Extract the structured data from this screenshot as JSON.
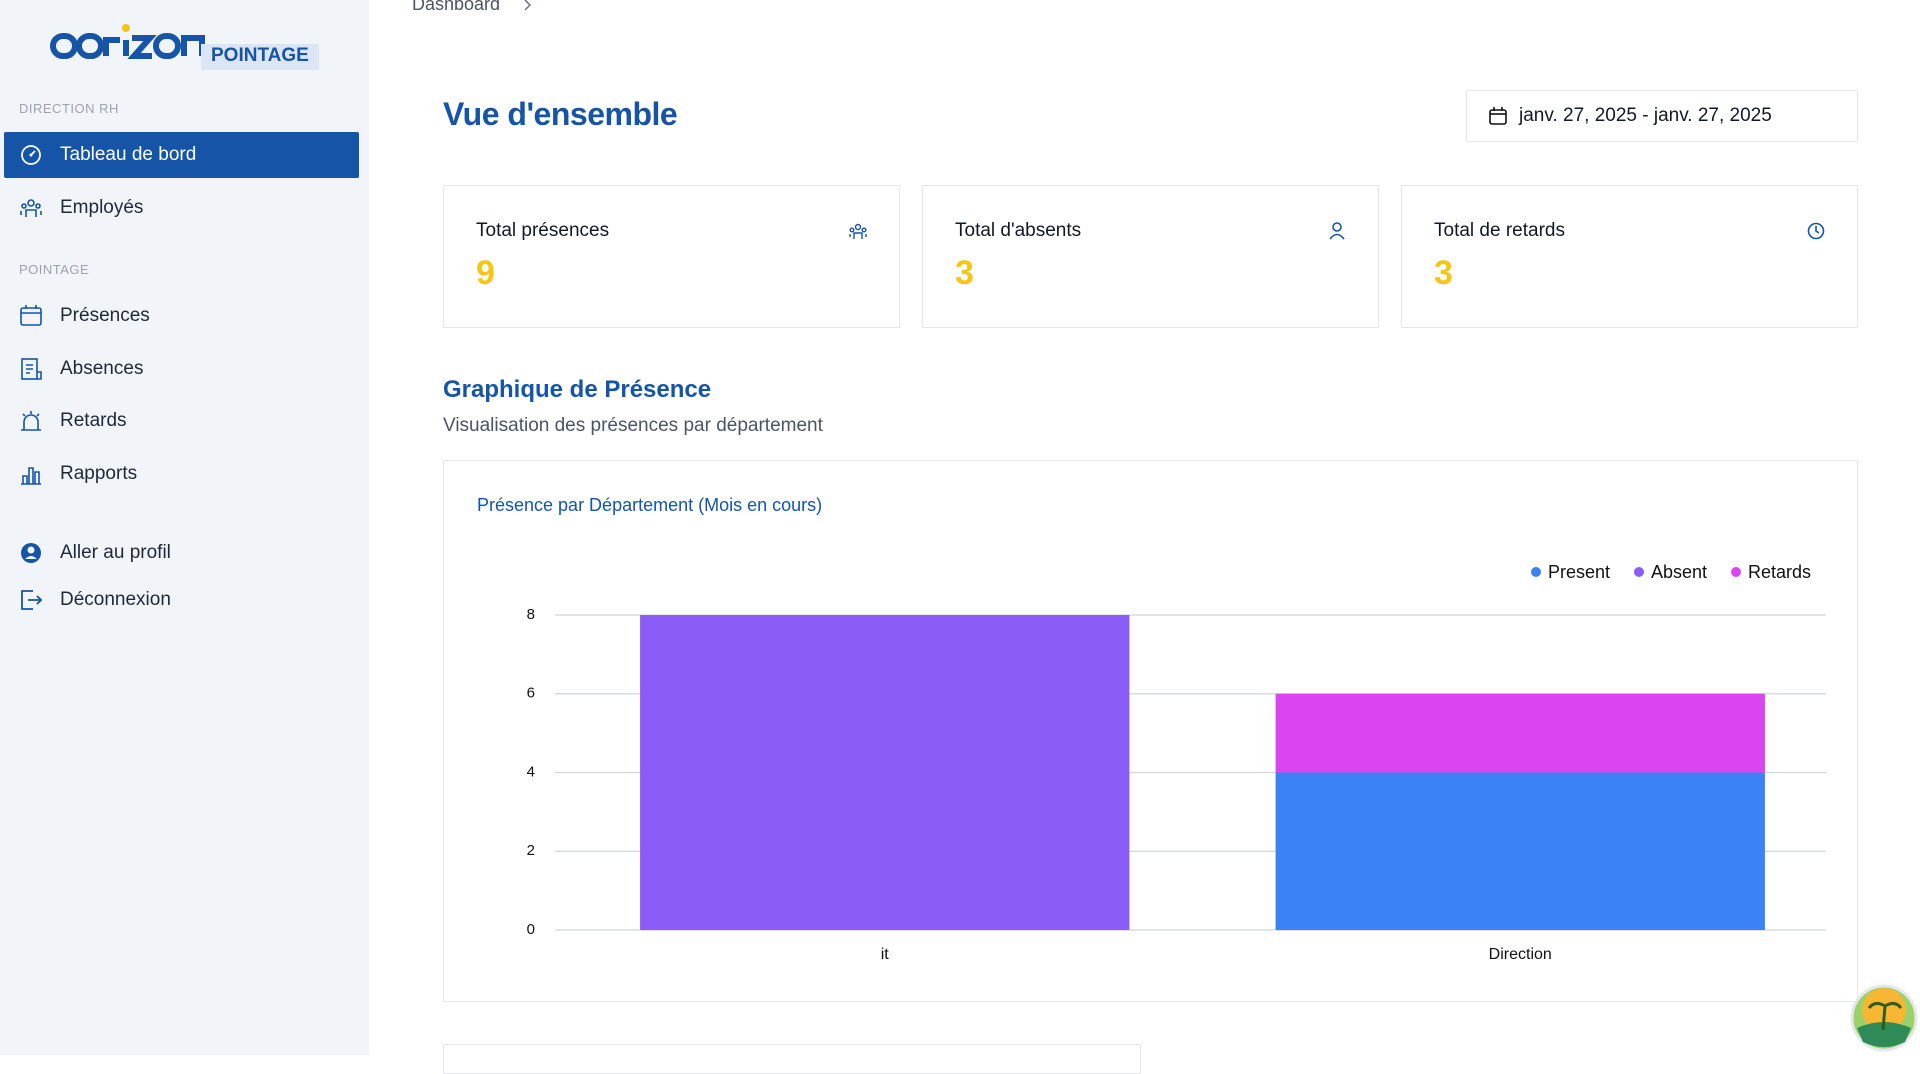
{
  "sidebar": {
    "badge": "POINTAGE",
    "sections": [
      {
        "title": "DIRECTION RH",
        "items": [
          "Tableau de bord",
          "Employés"
        ]
      },
      {
        "title": "POINTAGE",
        "items": [
          "Présences",
          "Absences",
          "Retards",
          "Rapports"
        ]
      }
    ],
    "footer_items": [
      "Aller au profil",
      "Déconnexion"
    ]
  },
  "header": {
    "breadcrumb": "Dashboard",
    "title": "Vue d'ensemble",
    "date_range": "janv. 27, 2025 - janv. 27, 2025"
  },
  "cards": [
    {
      "label": "Total présences",
      "value": "9"
    },
    {
      "label": "Total d'absents",
      "value": "3"
    },
    {
      "label": "Total de retards",
      "value": "3"
    }
  ],
  "section": {
    "title": "Graphique de Présence",
    "subtitle": "Visualisation des présences par département"
  },
  "chart_data": {
    "type": "stacked_bar",
    "title": "Présence par Département (Mois en cours)",
    "categories": [
      "it",
      "Direction"
    ],
    "series": [
      {
        "name": "Present",
        "color": "#3b82f6",
        "values": [
          0,
          4
        ]
      },
      {
        "name": "Absent",
        "color": "#8b5cf6",
        "values": [
          8,
          0
        ]
      },
      {
        "name": "Retards",
        "color": "#d946ef",
        "values": [
          0,
          2
        ]
      }
    ],
    "ylim": [
      0,
      8
    ],
    "yticks": [
      0,
      2,
      4,
      6,
      8
    ],
    "grid": true,
    "legend": "top-right"
  }
}
